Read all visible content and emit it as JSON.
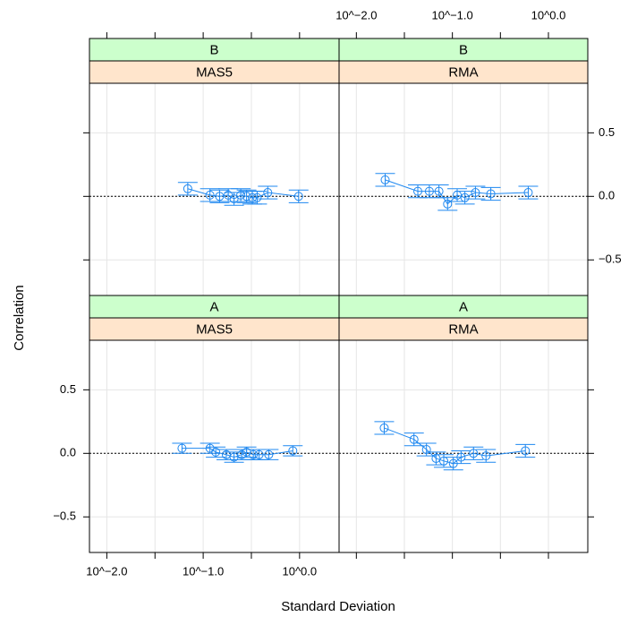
{
  "chart_data": {
    "type": "lattice",
    "xlabel": "Standard Deviation",
    "ylabel": "Correlation",
    "xlim": [
      -2.18,
      0.41
    ],
    "ylim": [
      -0.78,
      0.89
    ],
    "xticks": [
      {
        "value": -2,
        "label": "10^−2.0"
      },
      {
        "value": -1,
        "label": "10^−1.0"
      },
      {
        "value": 0,
        "label": "10^0.0"
      }
    ],
    "xminor_ticks": [
      -1.5,
      -0.5
    ],
    "yticks": [
      {
        "value": -0.5,
        "label": "−0.5"
      },
      {
        "value": 0,
        "label": "0.0"
      },
      {
        "value": 0.5,
        "label": "0.5"
      }
    ],
    "refline": 0,
    "grid": true,
    "color": "#1f88f0",
    "strip_colors": [
      "#ccffcc",
      "#ffe5cc"
    ],
    "panels": [
      {
        "strips": [
          "B",
          "MAS5"
        ],
        "x": [
          -1.16,
          -0.93,
          -0.83,
          -0.74,
          -0.68,
          -0.61,
          -0.55,
          -0.49,
          -0.44,
          -0.33,
          -0.01
        ],
        "values": [
          0.06,
          0.01,
          0.0,
          0.01,
          -0.02,
          0.01,
          0.0,
          -0.01,
          -0.01,
          0.03,
          0.0
        ],
        "errors": [
          0.05,
          0.05,
          0.05,
          0.05,
          0.05,
          0.05,
          0.05,
          0.05,
          0.05,
          0.05,
          0.05
        ]
      },
      {
        "strips": [
          "B",
          "RMA"
        ],
        "x": [
          -1.7,
          -1.36,
          -1.24,
          -1.14,
          -1.05,
          -0.95,
          -0.87,
          -0.76,
          -0.6,
          -0.21
        ],
        "values": [
          0.13,
          0.04,
          0.04,
          0.04,
          -0.06,
          0.01,
          -0.01,
          0.03,
          0.02,
          0.03
        ],
        "errors": [
          0.05,
          0.05,
          0.05,
          0.05,
          0.05,
          0.05,
          0.05,
          0.05,
          0.05,
          0.05
        ]
      },
      {
        "strips": [
          "A",
          "MAS5"
        ],
        "x": [
          -1.22,
          -0.93,
          -0.87,
          -0.76,
          -0.68,
          -0.6,
          -0.55,
          -0.48,
          -0.42,
          -0.32,
          -0.07
        ],
        "values": [
          0.04,
          0.04,
          0.01,
          -0.01,
          -0.03,
          -0.01,
          0.01,
          -0.01,
          -0.01,
          -0.01,
          0.02
        ],
        "errors": [
          0.04,
          0.04,
          0.04,
          0.04,
          0.04,
          0.04,
          0.04,
          0.04,
          0.04,
          0.04,
          0.04
        ]
      },
      {
        "strips": [
          "A",
          "RMA"
        ],
        "x": [
          -1.71,
          -1.4,
          -1.27,
          -1.17,
          -1.09,
          -0.99,
          -0.91,
          -0.78,
          -0.65,
          -0.24
        ],
        "values": [
          0.2,
          0.11,
          0.03,
          -0.04,
          -0.06,
          -0.08,
          -0.03,
          0.0,
          -0.02,
          0.02
        ],
        "errors": [
          0.05,
          0.05,
          0.05,
          0.05,
          0.05,
          0.05,
          0.05,
          0.05,
          0.05,
          0.05
        ]
      }
    ]
  }
}
